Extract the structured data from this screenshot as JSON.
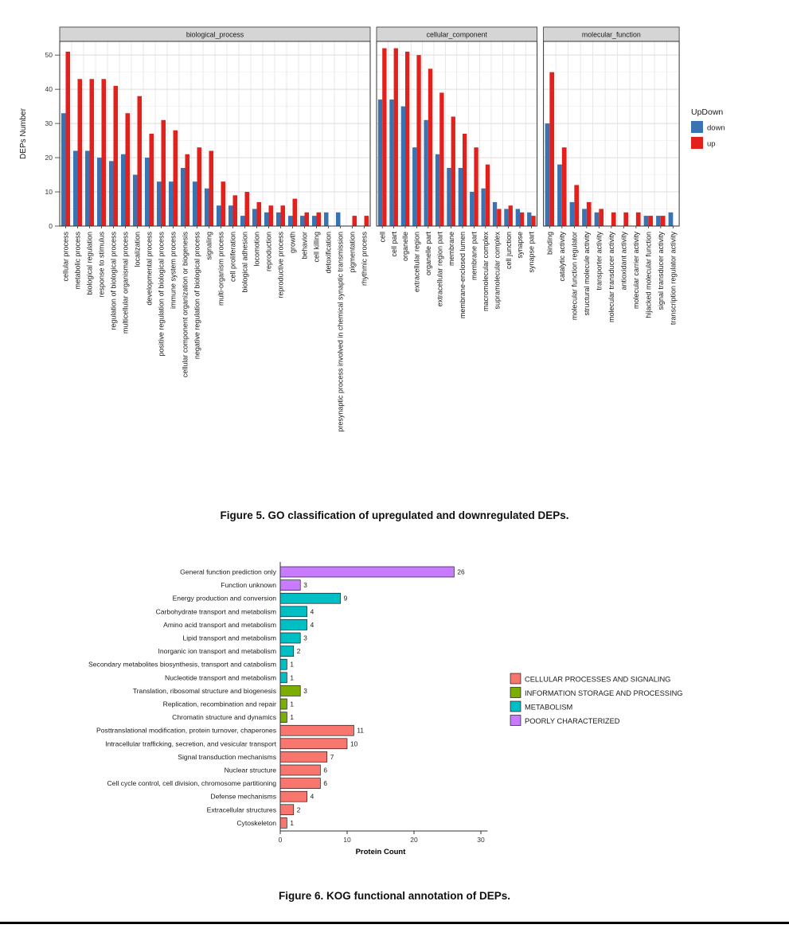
{
  "captions": {
    "figure5": "Figure 5. GO classification of upregulated and downregulated DEPs.",
    "figure6": "Figure 6. KOG functional annotation of DEPs."
  },
  "chart_data": [
    {
      "type": "bar",
      "title": "GO classification of DEPs",
      "ylabel": "DEPs Number",
      "ylim": [
        0,
        54
      ],
      "yticks": [
        0,
        10,
        20,
        30,
        40,
        50
      ],
      "legend_title": "UpDown",
      "legend": [
        "down",
        "up"
      ],
      "series_colors": {
        "down": "#3973B2",
        "up": "#E2211C"
      },
      "facets": [
        {
          "label": "biological_process",
          "categories": [
            "cellular process",
            "metabolic process",
            "biological regulation",
            "response to stimulus",
            "regulation of biological process",
            "multicellular organismal process",
            "localization",
            "developmental process",
            "positive regulation of biological process",
            "immune system process",
            "cellular component organization or biogenesis",
            "negative regulation of biological process",
            "signaling",
            "multi-organism process",
            "cell proliferation",
            "biological adhesion",
            "locomotion",
            "reproduction",
            "reproductive process",
            "growth",
            "behavior",
            "cell killing",
            "detoxification",
            "presynaptic process involved in chemical synaptic transmission",
            "pigmentation",
            "rhythmic process"
          ],
          "down": [
            33,
            22,
            22,
            20,
            19,
            21,
            15,
            20,
            13,
            13,
            17,
            13,
            11,
            6,
            6,
            3,
            5,
            4,
            4,
            3,
            3,
            3,
            4,
            4,
            0,
            0
          ],
          "up": [
            51,
            43,
            43,
            43,
            41,
            33,
            38,
            27,
            31,
            28,
            21,
            23,
            22,
            13,
            9,
            10,
            7,
            6,
            6,
            8,
            4,
            4,
            0,
            0,
            3,
            3
          ]
        },
        {
          "label": "cellular_component",
          "categories": [
            "cell",
            "cell part",
            "organelle",
            "extracellular region",
            "organelle part",
            "extracellular region part",
            "membrane",
            "membrane-enclosed lumen",
            "membrane part",
            "macromolecular complex",
            "supramolecular complex",
            "cell junction",
            "synapse",
            "synapse part"
          ],
          "down": [
            37,
            37,
            35,
            23,
            31,
            21,
            17,
            17,
            10,
            11,
            7,
            5,
            5,
            4
          ],
          "up": [
            52,
            52,
            51,
            50,
            46,
            39,
            32,
            27,
            23,
            18,
            5,
            6,
            4,
            3
          ]
        },
        {
          "label": "molecular_function",
          "categories": [
            "binding",
            "catalytic activity",
            "molecular function regulator",
            "structural molecule activity",
            "transporter activity",
            "molecular transducer activity",
            "antioxidant activity",
            "molecular carrier activity",
            "hijacked molecular function",
            "signal transducer activity",
            "transcription regulator activity"
          ],
          "down": [
            30,
            18,
            7,
            5,
            4,
            0,
            0,
            0,
            3,
            3,
            4
          ],
          "up": [
            45,
            23,
            12,
            7,
            5,
            4,
            4,
            4,
            3,
            3,
            0
          ]
        }
      ]
    },
    {
      "type": "bar",
      "orientation": "horizontal",
      "title": "KOG functional annotation",
      "xlabel": "Protein Count",
      "xlim": [
        0,
        31
      ],
      "xticks": [
        0,
        10,
        20,
        30
      ],
      "groups": [
        {
          "name": "CELLULAR PROCESSES AND SIGNALING",
          "color": "#F8766D"
        },
        {
          "name": "INFORMATION STORAGE AND PROCESSING",
          "color": "#7CAE00"
        },
        {
          "name": "METABOLISM",
          "color": "#00BFC4"
        },
        {
          "name": "POORLY CHARACTERIZED",
          "color": "#C77CFF"
        }
      ],
      "rows": [
        {
          "label": "General function prediction only",
          "value": 26,
          "group": "POORLY CHARACTERIZED"
        },
        {
          "label": "Function unknown",
          "value": 3,
          "group": "POORLY CHARACTERIZED"
        },
        {
          "label": "Energy production and conversion",
          "value": 9,
          "group": "METABOLISM"
        },
        {
          "label": "Carbohydrate transport and metabolism",
          "value": 4,
          "group": "METABOLISM"
        },
        {
          "label": "Amino acid transport and metabolism",
          "value": 4,
          "group": "METABOLISM"
        },
        {
          "label": "Lipid transport and metabolism",
          "value": 3,
          "group": "METABOLISM"
        },
        {
          "label": "Inorganic ion transport and metabolism",
          "value": 2,
          "group": "METABOLISM"
        },
        {
          "label": "Secondary metabolites biosynthesis, transport and catabolism",
          "value": 1,
          "group": "METABOLISM"
        },
        {
          "label": "Nucleotide transport and metabolism",
          "value": 1,
          "group": "METABOLISM"
        },
        {
          "label": "Translation, ribosomal structure and biogenesis",
          "value": 3,
          "group": "INFORMATION STORAGE AND PROCESSING"
        },
        {
          "label": "Replication, recombination and repair",
          "value": 1,
          "group": "INFORMATION STORAGE AND PROCESSING"
        },
        {
          "label": "Chromatin structure and dynamics",
          "value": 1,
          "group": "INFORMATION STORAGE AND PROCESSING"
        },
        {
          "label": "Posttranslational modification, protein turnover, chaperones",
          "value": 11,
          "group": "CELLULAR PROCESSES AND SIGNALING"
        },
        {
          "label": "Intracellular trafficking, secretion, and vesicular transport",
          "value": 10,
          "group": "CELLULAR PROCESSES AND SIGNALING"
        },
        {
          "label": "Signal transduction mechanisms",
          "value": 7,
          "group": "CELLULAR PROCESSES AND SIGNALING"
        },
        {
          "label": "Nuclear structure",
          "value": 6,
          "group": "CELLULAR PROCESSES AND SIGNALING"
        },
        {
          "label": "Cell cycle control, cell division, chromosome partitioning",
          "value": 6,
          "group": "CELLULAR PROCESSES AND SIGNALING"
        },
        {
          "label": "Defense mechanisms",
          "value": 4,
          "group": "CELLULAR PROCESSES AND SIGNALING"
        },
        {
          "label": "Extracellular structures",
          "value": 2,
          "group": "CELLULAR PROCESSES AND SIGNALING"
        },
        {
          "label": "Cytoskeleton",
          "value": 1,
          "group": "CELLULAR PROCESSES AND SIGNALING"
        }
      ]
    }
  ]
}
